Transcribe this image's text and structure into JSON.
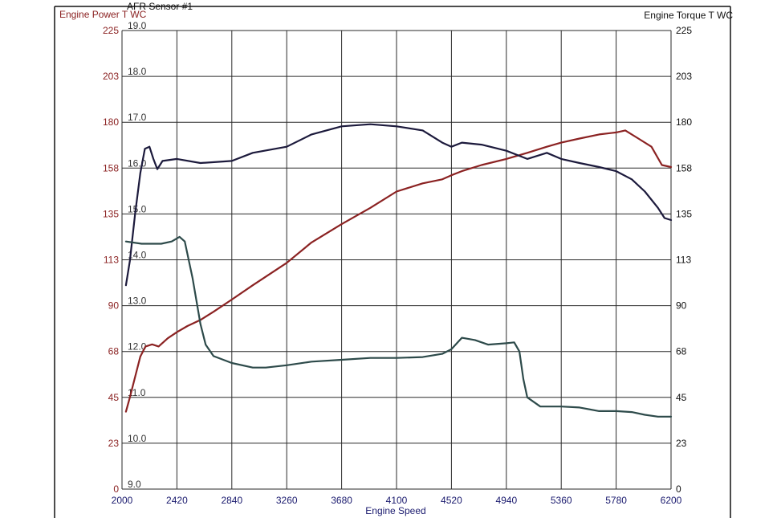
{
  "chart_data": {
    "type": "line",
    "titles": {
      "left_axis": "Engine Power T WC",
      "afr_axis": "AFR Sensor #1",
      "right_axis": "Engine Torque T WC",
      "x_axis": "Engine Speed"
    },
    "x_ticks": [
      "2000",
      "2420",
      "2840",
      "3260",
      "3680",
      "4100",
      "4520",
      "4940",
      "5360",
      "5780",
      "6200"
    ],
    "xlim": [
      2000,
      6200
    ],
    "left_ticks": [
      "0",
      "23",
      "45",
      "68",
      "90",
      "113",
      "135",
      "158",
      "180",
      "203",
      "225"
    ],
    "right_ticks": [
      "0",
      "23",
      "45",
      "68",
      "90",
      "113",
      "135",
      "158",
      "180",
      "203",
      "225"
    ],
    "ylim": [
      0,
      225
    ],
    "afr_ticks": [
      "9.0",
      "10.0",
      "11.0",
      "12.0",
      "13.0",
      "14.0",
      "15.0",
      "16.0",
      "17.0",
      "18.0",
      "19.0"
    ],
    "afr_lim": [
      9,
      19
    ],
    "grid": true,
    "series": [
      {
        "name": "Engine Power T WC",
        "axis": "left",
        "color": "#8b2222",
        "points": [
          [
            2030,
            38
          ],
          [
            2060,
            45
          ],
          [
            2100,
            55
          ],
          [
            2140,
            65
          ],
          [
            2180,
            70
          ],
          [
            2230,
            71
          ],
          [
            2280,
            70
          ],
          [
            2350,
            74
          ],
          [
            2420,
            77
          ],
          [
            2500,
            80
          ],
          [
            2600,
            83
          ],
          [
            2700,
            87
          ],
          [
            2840,
            93
          ],
          [
            3000,
            100
          ],
          [
            3260,
            111
          ],
          [
            3450,
            121
          ],
          [
            3680,
            130
          ],
          [
            3900,
            138
          ],
          [
            4100,
            146
          ],
          [
            4300,
            150
          ],
          [
            4450,
            152
          ],
          [
            4520,
            154
          ],
          [
            4600,
            156
          ],
          [
            4750,
            159
          ],
          [
            4940,
            162
          ],
          [
            5100,
            165
          ],
          [
            5250,
            168
          ],
          [
            5360,
            170
          ],
          [
            5500,
            172
          ],
          [
            5650,
            174
          ],
          [
            5780,
            175
          ],
          [
            5850,
            176
          ],
          [
            5950,
            172
          ],
          [
            6050,
            168
          ],
          [
            6130,
            159
          ],
          [
            6200,
            158
          ]
        ]
      },
      {
        "name": "Engine Torque T WC",
        "axis": "right",
        "color": "#1c1a3c",
        "points": [
          [
            2030,
            100
          ],
          [
            2060,
            112
          ],
          [
            2100,
            135
          ],
          [
            2140,
            155
          ],
          [
            2175,
            167
          ],
          [
            2210,
            168
          ],
          [
            2240,
            162
          ],
          [
            2270,
            157
          ],
          [
            2310,
            161
          ],
          [
            2420,
            162
          ],
          [
            2600,
            160
          ],
          [
            2840,
            161
          ],
          [
            3000,
            165
          ],
          [
            3260,
            168
          ],
          [
            3450,
            174
          ],
          [
            3680,
            178
          ],
          [
            3900,
            179
          ],
          [
            4100,
            178
          ],
          [
            4300,
            176
          ],
          [
            4450,
            170
          ],
          [
            4520,
            168
          ],
          [
            4600,
            170
          ],
          [
            4750,
            169
          ],
          [
            4940,
            166
          ],
          [
            5100,
            162
          ],
          [
            5250,
            165
          ],
          [
            5360,
            162
          ],
          [
            5500,
            160
          ],
          [
            5650,
            158
          ],
          [
            5780,
            156
          ],
          [
            5900,
            152
          ],
          [
            6000,
            146
          ],
          [
            6100,
            138
          ],
          [
            6150,
            133
          ],
          [
            6200,
            132
          ]
        ]
      },
      {
        "name": "AFR Sensor #1",
        "axis": "afr",
        "color": "#2d4a4a",
        "points": [
          [
            2030,
            14.4
          ],
          [
            2150,
            14.35
          ],
          [
            2300,
            14.35
          ],
          [
            2380,
            14.4
          ],
          [
            2440,
            14.5
          ],
          [
            2480,
            14.4
          ],
          [
            2540,
            13.6
          ],
          [
            2600,
            12.6
          ],
          [
            2640,
            12.15
          ],
          [
            2700,
            11.9
          ],
          [
            2840,
            11.75
          ],
          [
            3000,
            11.65
          ],
          [
            3100,
            11.65
          ],
          [
            3260,
            11.7
          ],
          [
            3450,
            11.78
          ],
          [
            3680,
            11.82
          ],
          [
            3900,
            11.86
          ],
          [
            4100,
            11.86
          ],
          [
            4300,
            11.88
          ],
          [
            4450,
            11.95
          ],
          [
            4520,
            12.05
          ],
          [
            4600,
            12.3
          ],
          [
            4700,
            12.25
          ],
          [
            4800,
            12.15
          ],
          [
            4940,
            12.18
          ],
          [
            5000,
            12.2
          ],
          [
            5040,
            12.0
          ],
          [
            5070,
            11.4
          ],
          [
            5100,
            11.0
          ],
          [
            5200,
            10.8
          ],
          [
            5360,
            10.8
          ],
          [
            5500,
            10.78
          ],
          [
            5650,
            10.7
          ],
          [
            5780,
            10.7
          ],
          [
            5900,
            10.68
          ],
          [
            6000,
            10.62
          ],
          [
            6100,
            10.58
          ],
          [
            6200,
            10.58
          ]
        ]
      }
    ]
  }
}
